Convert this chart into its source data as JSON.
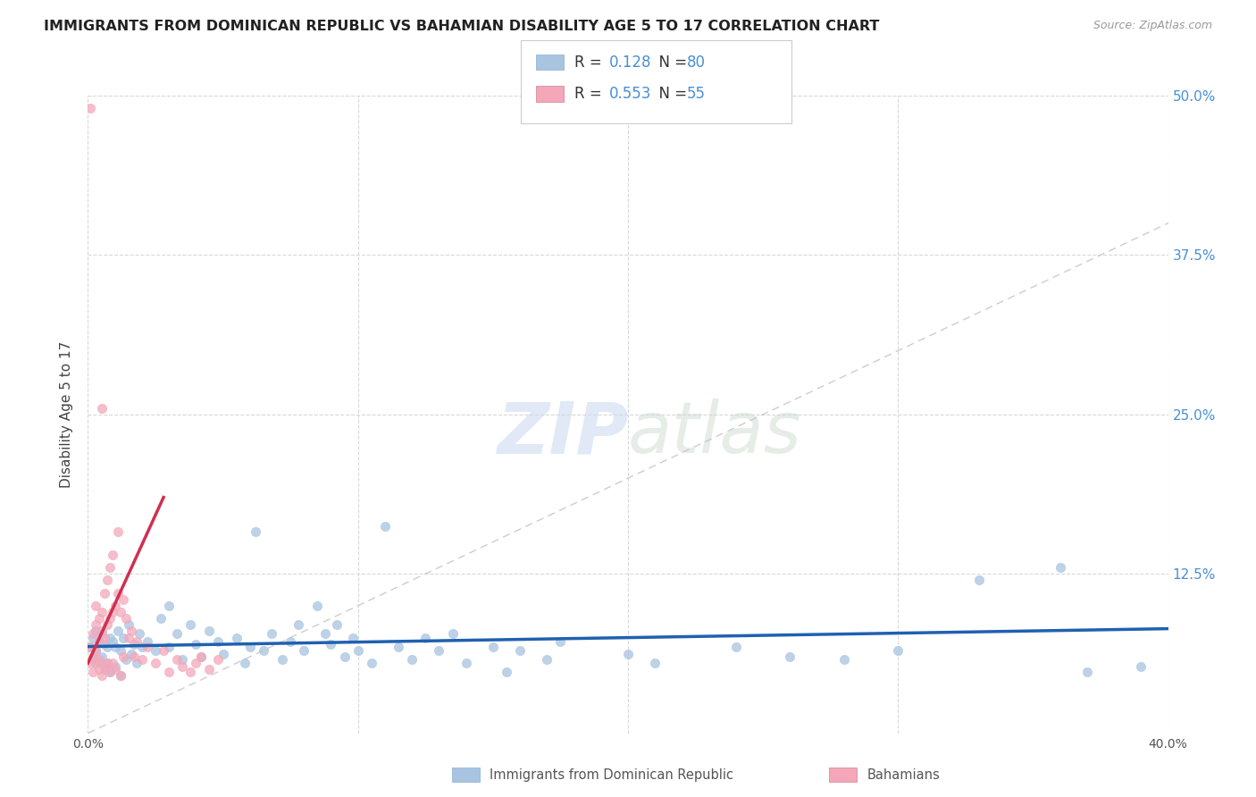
{
  "title": "IMMIGRANTS FROM DOMINICAN REPUBLIC VS BAHAMIAN DISABILITY AGE 5 TO 17 CORRELATION CHART",
  "source": "Source: ZipAtlas.com",
  "ylabel": "Disability Age 5 to 17",
  "xlim": [
    0.0,
    0.4
  ],
  "ylim": [
    0.0,
    0.5
  ],
  "xticks": [
    0.0,
    0.1,
    0.2,
    0.3,
    0.4
  ],
  "xticklabels": [
    "0.0%",
    "",
    "",
    "",
    "40.0%"
  ],
  "yticks": [
    0.0,
    0.125,
    0.25,
    0.375,
    0.5
  ],
  "yticklabels": [
    "",
    "12.5%",
    "25.0%",
    "37.5%",
    "50.0%"
  ],
  "legend_R_blue": "0.128",
  "legend_N_blue": "80",
  "legend_R_pink": "0.553",
  "legend_N_pink": "55",
  "legend_label_blue": "Immigrants from Dominican Republic",
  "legend_label_pink": "Bahamians",
  "blue_color": "#a8c4e0",
  "pink_color": "#f4a7b9",
  "trendline_blue_color": "#2060b0",
  "trendline_pink_color": "#d03050",
  "trendline_diag_color": "#c8c8c8",
  "watermark_zip": "ZIP",
  "watermark_atlas": "atlas",
  "background_color": "#ffffff",
  "grid_color": "#d8d8d8",
  "blue_scatter": [
    [
      0.001,
      0.068
    ],
    [
      0.002,
      0.075
    ],
    [
      0.002,
      0.058
    ],
    [
      0.003,
      0.08
    ],
    [
      0.003,
      0.065
    ],
    [
      0.004,
      0.072
    ],
    [
      0.004,
      0.055
    ],
    [
      0.005,
      0.078
    ],
    [
      0.005,
      0.06
    ],
    [
      0.006,
      0.07
    ],
    [
      0.006,
      0.05
    ],
    [
      0.007,
      0.068
    ],
    [
      0.007,
      0.055
    ],
    [
      0.008,
      0.075
    ],
    [
      0.008,
      0.048
    ],
    [
      0.009,
      0.072
    ],
    [
      0.01,
      0.068
    ],
    [
      0.01,
      0.052
    ],
    [
      0.011,
      0.08
    ],
    [
      0.012,
      0.065
    ],
    [
      0.012,
      0.045
    ],
    [
      0.013,
      0.075
    ],
    [
      0.014,
      0.058
    ],
    [
      0.015,
      0.085
    ],
    [
      0.016,
      0.062
    ],
    [
      0.017,
      0.07
    ],
    [
      0.018,
      0.055
    ],
    [
      0.019,
      0.078
    ],
    [
      0.02,
      0.068
    ],
    [
      0.022,
      0.072
    ],
    [
      0.025,
      0.065
    ],
    [
      0.027,
      0.09
    ],
    [
      0.03,
      0.1
    ],
    [
      0.03,
      0.068
    ],
    [
      0.033,
      0.078
    ],
    [
      0.035,
      0.058
    ],
    [
      0.038,
      0.085
    ],
    [
      0.04,
      0.07
    ],
    [
      0.042,
      0.06
    ],
    [
      0.045,
      0.08
    ],
    [
      0.048,
      0.072
    ],
    [
      0.05,
      0.062
    ],
    [
      0.055,
      0.075
    ],
    [
      0.058,
      0.055
    ],
    [
      0.06,
      0.068
    ],
    [
      0.062,
      0.158
    ],
    [
      0.065,
      0.065
    ],
    [
      0.068,
      0.078
    ],
    [
      0.072,
      0.058
    ],
    [
      0.075,
      0.072
    ],
    [
      0.078,
      0.085
    ],
    [
      0.08,
      0.065
    ],
    [
      0.085,
      0.1
    ],
    [
      0.088,
      0.078
    ],
    [
      0.09,
      0.07
    ],
    [
      0.092,
      0.085
    ],
    [
      0.095,
      0.06
    ],
    [
      0.098,
      0.075
    ],
    [
      0.1,
      0.065
    ],
    [
      0.105,
      0.055
    ],
    [
      0.11,
      0.162
    ],
    [
      0.115,
      0.068
    ],
    [
      0.12,
      0.058
    ],
    [
      0.125,
      0.075
    ],
    [
      0.13,
      0.065
    ],
    [
      0.135,
      0.078
    ],
    [
      0.14,
      0.055
    ],
    [
      0.15,
      0.068
    ],
    [
      0.155,
      0.048
    ],
    [
      0.16,
      0.065
    ],
    [
      0.17,
      0.058
    ],
    [
      0.175,
      0.072
    ],
    [
      0.2,
      0.062
    ],
    [
      0.21,
      0.055
    ],
    [
      0.24,
      0.068
    ],
    [
      0.26,
      0.06
    ],
    [
      0.28,
      0.058
    ],
    [
      0.3,
      0.065
    ],
    [
      0.33,
      0.12
    ],
    [
      0.36,
      0.13
    ],
    [
      0.37,
      0.048
    ],
    [
      0.39,
      0.052
    ]
  ],
  "pink_scatter": [
    [
      0.001,
      0.068
    ],
    [
      0.001,
      0.055
    ],
    [
      0.002,
      0.078
    ],
    [
      0.002,
      0.048
    ],
    [
      0.002,
      0.06
    ],
    [
      0.003,
      0.085
    ],
    [
      0.003,
      0.055
    ],
    [
      0.003,
      0.1
    ],
    [
      0.003,
      0.065
    ],
    [
      0.004,
      0.072
    ],
    [
      0.004,
      0.05
    ],
    [
      0.004,
      0.09
    ],
    [
      0.004,
      0.058
    ],
    [
      0.005,
      0.08
    ],
    [
      0.005,
      0.045
    ],
    [
      0.005,
      0.095
    ],
    [
      0.006,
      0.075
    ],
    [
      0.006,
      0.052
    ],
    [
      0.006,
      0.11
    ],
    [
      0.007,
      0.085
    ],
    [
      0.007,
      0.055
    ],
    [
      0.007,
      0.12
    ],
    [
      0.008,
      0.09
    ],
    [
      0.008,
      0.048
    ],
    [
      0.008,
      0.13
    ],
    [
      0.009,
      0.095
    ],
    [
      0.009,
      0.055
    ],
    [
      0.009,
      0.14
    ],
    [
      0.01,
      0.1
    ],
    [
      0.01,
      0.05
    ],
    [
      0.011,
      0.11
    ],
    [
      0.011,
      0.158
    ],
    [
      0.012,
      0.095
    ],
    [
      0.012,
      0.045
    ],
    [
      0.013,
      0.105
    ],
    [
      0.013,
      0.06
    ],
    [
      0.014,
      0.09
    ],
    [
      0.015,
      0.075
    ],
    [
      0.016,
      0.08
    ],
    [
      0.017,
      0.06
    ],
    [
      0.018,
      0.072
    ],
    [
      0.02,
      0.058
    ],
    [
      0.022,
      0.068
    ],
    [
      0.025,
      0.055
    ],
    [
      0.028,
      0.065
    ],
    [
      0.03,
      0.048
    ],
    [
      0.033,
      0.058
    ],
    [
      0.035,
      0.052
    ],
    [
      0.001,
      0.49
    ],
    [
      0.005,
      0.255
    ],
    [
      0.038,
      0.048
    ],
    [
      0.04,
      0.055
    ],
    [
      0.042,
      0.06
    ],
    [
      0.045,
      0.05
    ],
    [
      0.048,
      0.058
    ]
  ],
  "pink_trendline_x": [
    0.0,
    0.028
  ],
  "pink_trendline_y_start": 0.055,
  "pink_trendline_y_end": 0.185,
  "blue_trendline_x": [
    0.0,
    0.4
  ],
  "blue_trendline_y_start": 0.068,
  "blue_trendline_y_end": 0.082
}
